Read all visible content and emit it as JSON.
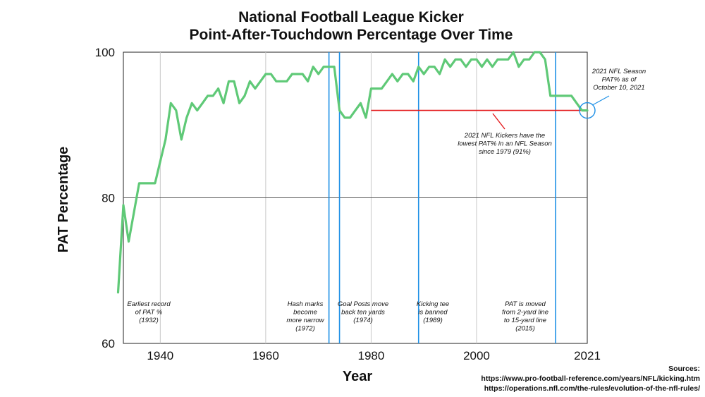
{
  "chart_data": {
    "type": "line",
    "title": [
      "National Football League Kicker",
      "Point-After-Touchdown Percentage Over Time"
    ],
    "xlabel": "Year",
    "ylabel": "PAT Percentage",
    "xlim": [
      1933,
      2021
    ],
    "ylim": [
      60,
      100
    ],
    "x_ticks": [
      1940,
      1960,
      1980,
      2000,
      2021
    ],
    "y_ticks": [
      60,
      80,
      100
    ],
    "grid": true,
    "series": [
      {
        "name": "PAT %",
        "color": "#5fc977",
        "x": [
          1932,
          1933,
          1934,
          1935,
          1936,
          1937,
          1938,
          1939,
          1940,
          1941,
          1942,
          1943,
          1944,
          1945,
          1946,
          1947,
          1948,
          1949,
          1950,
          1951,
          1952,
          1953,
          1954,
          1955,
          1956,
          1957,
          1958,
          1959,
          1960,
          1961,
          1962,
          1963,
          1964,
          1965,
          1966,
          1967,
          1968,
          1969,
          1970,
          1971,
          1972,
          1973,
          1974,
          1975,
          1976,
          1977,
          1978,
          1979,
          1980,
          1981,
          1982,
          1983,
          1984,
          1985,
          1986,
          1987,
          1988,
          1989,
          1990,
          1991,
          1992,
          1993,
          1994,
          1995,
          1996,
          1997,
          1998,
          1999,
          2000,
          2001,
          2002,
          2003,
          2004,
          2005,
          2006,
          2007,
          2008,
          2009,
          2010,
          2011,
          2012,
          2013,
          2014,
          2015,
          2016,
          2017,
          2018,
          2019,
          2020,
          2021
        ],
        "values": [
          67,
          79,
          74,
          78,
          82,
          82,
          82,
          82,
          85,
          88,
          93,
          92,
          88,
          91,
          93,
          92,
          93,
          94,
          94,
          95,
          93,
          96,
          96,
          93,
          94,
          96,
          95,
          96,
          97,
          97,
          96,
          96,
          96,
          97,
          97,
          97,
          96,
          98,
          97,
          98,
          98,
          98,
          92,
          91,
          91,
          92,
          93,
          91,
          95,
          95,
          95,
          96,
          97,
          96,
          97,
          97,
          96,
          98,
          97,
          98,
          98,
          97,
          99,
          98,
          99,
          99,
          98,
          99,
          99,
          98,
          99,
          98,
          99,
          99,
          99,
          100,
          98,
          99,
          99,
          100,
          100,
          99,
          94,
          94,
          94,
          94,
          94,
          93,
          92,
          92
        ]
      }
    ],
    "event_lines": [
      {
        "year": 1972,
        "color": "#1e90e6",
        "text": [
          "Hash marks",
          "become",
          "more narrow",
          "(1972)"
        ]
      },
      {
        "year": 1974,
        "color": "#1e90e6",
        "text": [
          "Goal Posts move",
          "back ten yards",
          "(1974)"
        ]
      },
      {
        "year": 1989,
        "color": "#1e90e6",
        "text": [
          "Kicking tee",
          "is banned",
          "(1989)"
        ]
      },
      {
        "year": 2015,
        "color": "#1e90e6",
        "text": [
          "PAT is moved",
          "from 2-yard line",
          "to 15-yard line",
          "(2015)"
        ]
      }
    ],
    "first_record_note": {
      "year": 1932,
      "text": [
        "Earliest record",
        "of PAT %",
        "(1932)"
      ]
    },
    "reference_line": {
      "from_year": 1980,
      "to_year": 2021,
      "value": 92,
      "color": "#e41a1c"
    },
    "red_note": [
      "2021 NFL Kickers have the",
      "lowest PAT% in an NFL Season",
      "since 1979 (91%)"
    ],
    "season_note": {
      "year": 2021,
      "value": 92,
      "color": "#1e90e6",
      "text": [
        "2021 NFL Season",
        "PAT% as of",
        "October 10, 2021"
      ]
    }
  },
  "sources": {
    "heading": "Sources:",
    "lines": [
      "https://www.pro-football-reference.com/years/NFL/kicking.htm",
      "https://operations.nfl.com/the-rules/evolution-of-the-nfl-rules/"
    ]
  }
}
